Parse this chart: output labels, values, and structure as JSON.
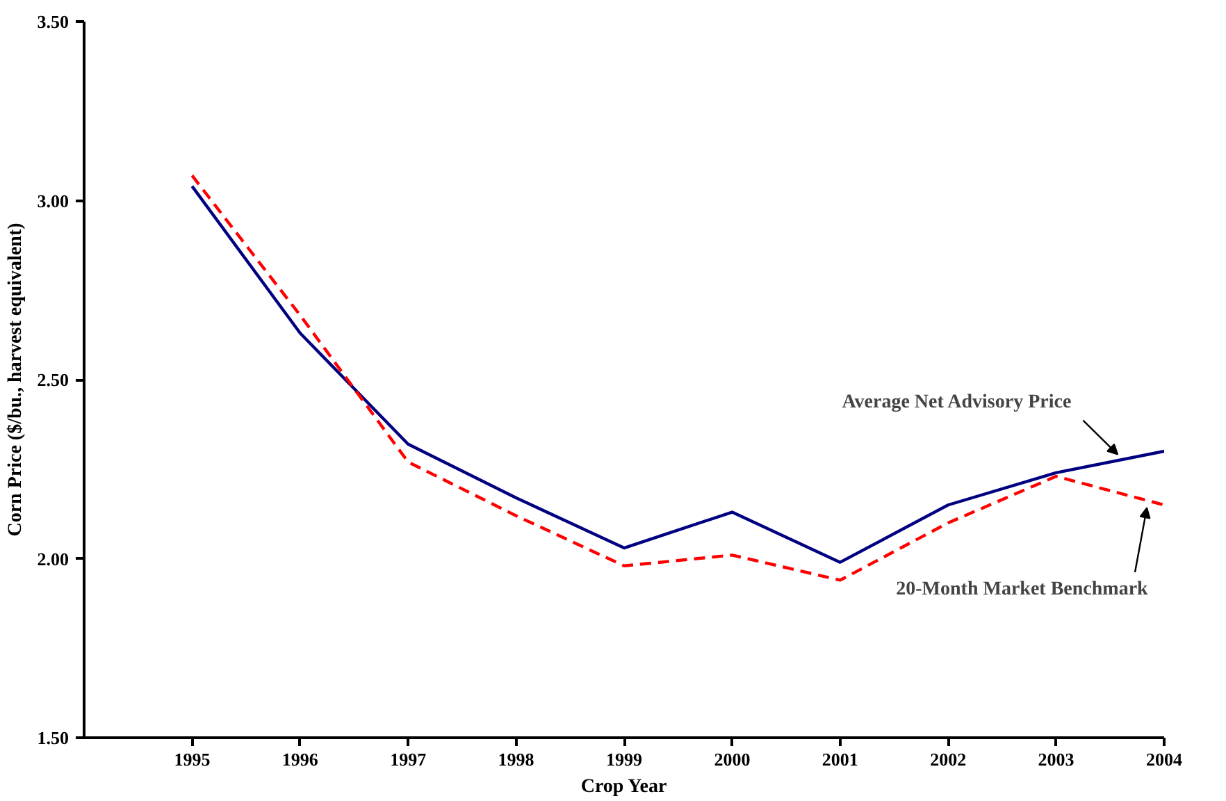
{
  "chart_data": {
    "type": "line",
    "xlabel": "Crop Year",
    "ylabel": "Corn Price ($/bu., harvest equivalent)",
    "x": [
      1995,
      1996,
      1997,
      1998,
      1999,
      2000,
      2001,
      2002,
      2003,
      2004
    ],
    "xlim": [
      1994,
      2004
    ],
    "xticks": [
      1995,
      1996,
      1997,
      1998,
      1999,
      2000,
      2001,
      2002,
      2003,
      2004
    ],
    "ylim": [
      1.5,
      3.5
    ],
    "yticks": [
      {
        "value": 1.5,
        "label": "1.50"
      },
      {
        "value": 2.0,
        "label": "2.00"
      },
      {
        "value": 2.5,
        "label": "2.50"
      },
      {
        "value": 3.0,
        "label": "3.00"
      },
      {
        "value": 3.5,
        "label": "3.50"
      }
    ],
    "grid": false,
    "marker": "none",
    "series": [
      {
        "name": "Average Net Advisory Price",
        "color": "#000080",
        "line_style": "solid",
        "values": [
          3.04,
          2.63,
          2.32,
          2.17,
          2.03,
          2.13,
          1.99,
          2.15,
          2.24,
          2.3
        ]
      },
      {
        "name": "20-Month Market Benchmark",
        "color": "#ff0000",
        "line_style": "dashed",
        "values": [
          3.07,
          2.68,
          2.27,
          2.12,
          1.98,
          2.01,
          1.94,
          2.1,
          2.23,
          2.15
        ]
      }
    ]
  }
}
